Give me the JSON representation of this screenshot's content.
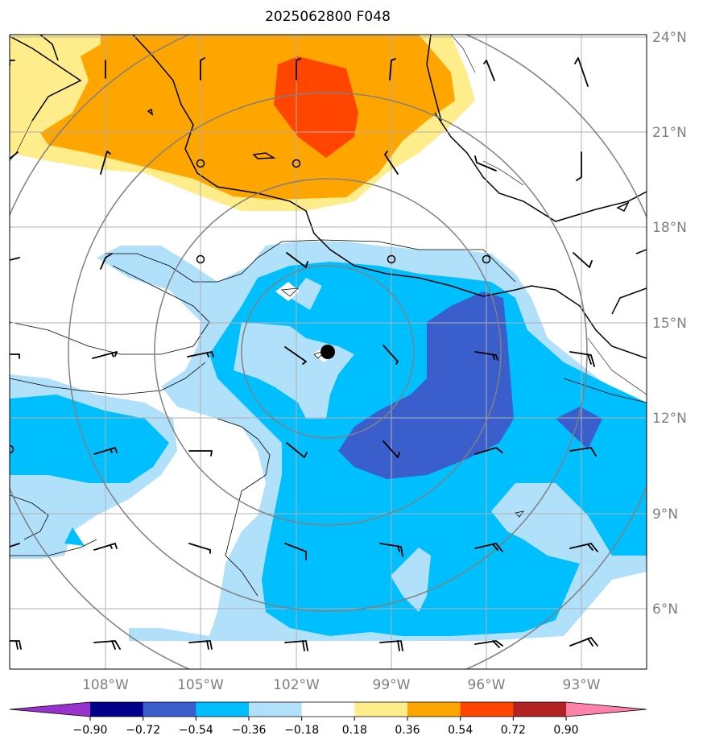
{
  "title": "2025062800 F048",
  "lat_labels": [
    "24°N",
    "21°N",
    "18°N",
    "15°N",
    "12°N",
    "9°N",
    "6°N"
  ],
  "lon_labels": [
    "108°W",
    "105°W",
    "102°W",
    "99°W",
    "96°W",
    "93°W"
  ],
  "colorbar": {
    "tick_labels": [
      "−0.90",
      "−0.72",
      "−0.54",
      "−0.36",
      "−0.18",
      "0.18",
      "0.36",
      "0.54",
      "0.72",
      "0.90"
    ],
    "colors": [
      "#9932cc",
      "#00008b",
      "#3a5fcd",
      "#00bfff",
      "#b0e0fa",
      "#ffffff",
      "#ffec8b",
      "#ffa500",
      "#ff4500",
      "#b22222",
      "#ff82ab"
    ]
  },
  "storm_marker_icon": "black-dot-icon",
  "fill_colors": {
    "light_yellow": "#ffec8b",
    "orange": "#ffa500",
    "red_orange": "#ff4500",
    "light_blue": "#b0e0fa",
    "deep_sky_blue": "#00bfff",
    "royal_blue": "#3a5fcd"
  }
}
